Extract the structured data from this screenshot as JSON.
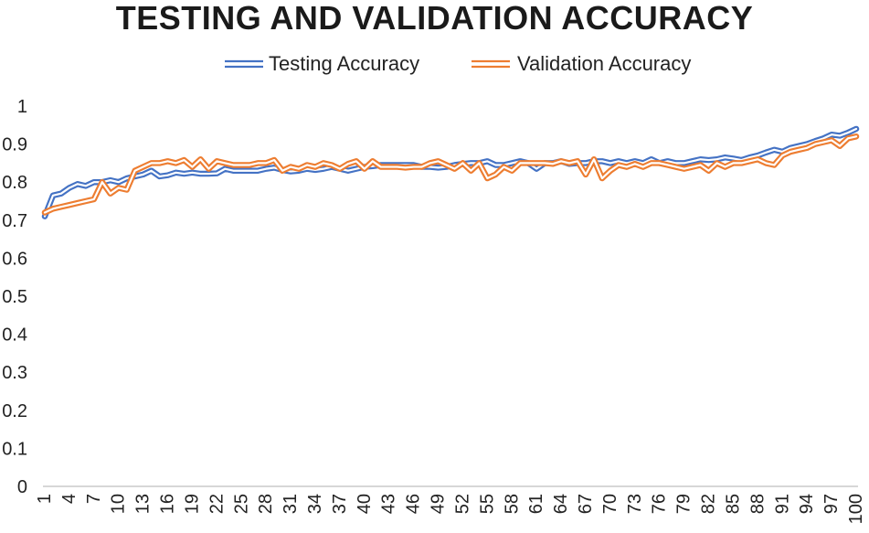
{
  "chart_data": {
    "type": "line",
    "title": "TESTING AND VALIDATION ACCURACY",
    "xlabel": "",
    "ylabel": "",
    "ylim": [
      0,
      1
    ],
    "yticks": [
      "0",
      "0.1",
      "0.2",
      "0.3",
      "0.4",
      "0.5",
      "0.6",
      "0.7",
      "0.8",
      "0.9",
      "1"
    ],
    "x": [
      1,
      2,
      3,
      4,
      5,
      6,
      7,
      8,
      9,
      10,
      11,
      12,
      13,
      14,
      15,
      16,
      17,
      18,
      19,
      20,
      21,
      22,
      23,
      24,
      25,
      26,
      27,
      28,
      29,
      30,
      31,
      32,
      33,
      34,
      35,
      36,
      37,
      38,
      39,
      40,
      41,
      42,
      43,
      44,
      45,
      46,
      47,
      48,
      49,
      50,
      51,
      52,
      53,
      54,
      55,
      56,
      57,
      58,
      59,
      60,
      61,
      62,
      63,
      64,
      65,
      66,
      67,
      68,
      69,
      70,
      71,
      72,
      73,
      74,
      75,
      76,
      77,
      78,
      79,
      80,
      81,
      82,
      83,
      84,
      85,
      86,
      87,
      88,
      89,
      90,
      91,
      92,
      93,
      94,
      95,
      96,
      97,
      98,
      99,
      100
    ],
    "xticks": [
      "1",
      "4",
      "7",
      "10",
      "13",
      "16",
      "19",
      "22",
      "25",
      "28",
      "31",
      "34",
      "37",
      "40",
      "43",
      "46",
      "49",
      "52",
      "55",
      "58",
      "61",
      "64",
      "67",
      "70",
      "73",
      "76",
      "79",
      "82",
      "85",
      "88",
      "91",
      "94",
      "97",
      "100"
    ],
    "grid": false,
    "legend_position": "top",
    "series": [
      {
        "name": "Testing Accuracy",
        "color": "#4472c4",
        "values": [
          0.71,
          0.765,
          0.77,
          0.785,
          0.795,
          0.79,
          0.8,
          0.8,
          0.805,
          0.8,
          0.81,
          0.815,
          0.82,
          0.83,
          0.815,
          0.818,
          0.825,
          0.822,
          0.825,
          0.822,
          0.822,
          0.823,
          0.835,
          0.83,
          0.83,
          0.83,
          0.83,
          0.835,
          0.838,
          0.832,
          0.828,
          0.83,
          0.835,
          0.832,
          0.835,
          0.84,
          0.835,
          0.83,
          0.835,
          0.84,
          0.842,
          0.845,
          0.845,
          0.845,
          0.845,
          0.845,
          0.84,
          0.84,
          0.838,
          0.84,
          0.845,
          0.848,
          0.85,
          0.85,
          0.855,
          0.845,
          0.845,
          0.85,
          0.855,
          0.85,
          0.835,
          0.85,
          0.85,
          0.855,
          0.848,
          0.85,
          0.85,
          0.855,
          0.855,
          0.85,
          0.855,
          0.85,
          0.855,
          0.85,
          0.86,
          0.85,
          0.855,
          0.85,
          0.85,
          0.855,
          0.86,
          0.858,
          0.86,
          0.865,
          0.862,
          0.858,
          0.865,
          0.87,
          0.878,
          0.885,
          0.88,
          0.89,
          0.895,
          0.9,
          0.908,
          0.915,
          0.925,
          0.922,
          0.93,
          0.94
        ]
      },
      {
        "name": "Validation Accuracy",
        "color": "#ed7d31",
        "values": [
          0.72,
          0.73,
          0.735,
          0.74,
          0.745,
          0.75,
          0.755,
          0.8,
          0.77,
          0.785,
          0.78,
          0.83,
          0.84,
          0.85,
          0.85,
          0.855,
          0.85,
          0.858,
          0.84,
          0.86,
          0.835,
          0.855,
          0.85,
          0.845,
          0.845,
          0.845,
          0.85,
          0.85,
          0.858,
          0.83,
          0.84,
          0.835,
          0.845,
          0.84,
          0.85,
          0.845,
          0.835,
          0.848,
          0.855,
          0.835,
          0.855,
          0.84,
          0.84,
          0.84,
          0.838,
          0.84,
          0.84,
          0.85,
          0.855,
          0.845,
          0.835,
          0.85,
          0.83,
          0.85,
          0.81,
          0.82,
          0.84,
          0.83,
          0.85,
          0.85,
          0.85,
          0.85,
          0.848,
          0.855,
          0.85,
          0.855,
          0.82,
          0.86,
          0.81,
          0.83,
          0.845,
          0.84,
          0.848,
          0.84,
          0.85,
          0.85,
          0.845,
          0.84,
          0.835,
          0.84,
          0.845,
          0.83,
          0.85,
          0.84,
          0.85,
          0.85,
          0.855,
          0.86,
          0.85,
          0.845,
          0.87,
          0.88,
          0.885,
          0.89,
          0.9,
          0.905,
          0.91,
          0.895,
          0.915,
          0.92
        ]
      }
    ]
  }
}
